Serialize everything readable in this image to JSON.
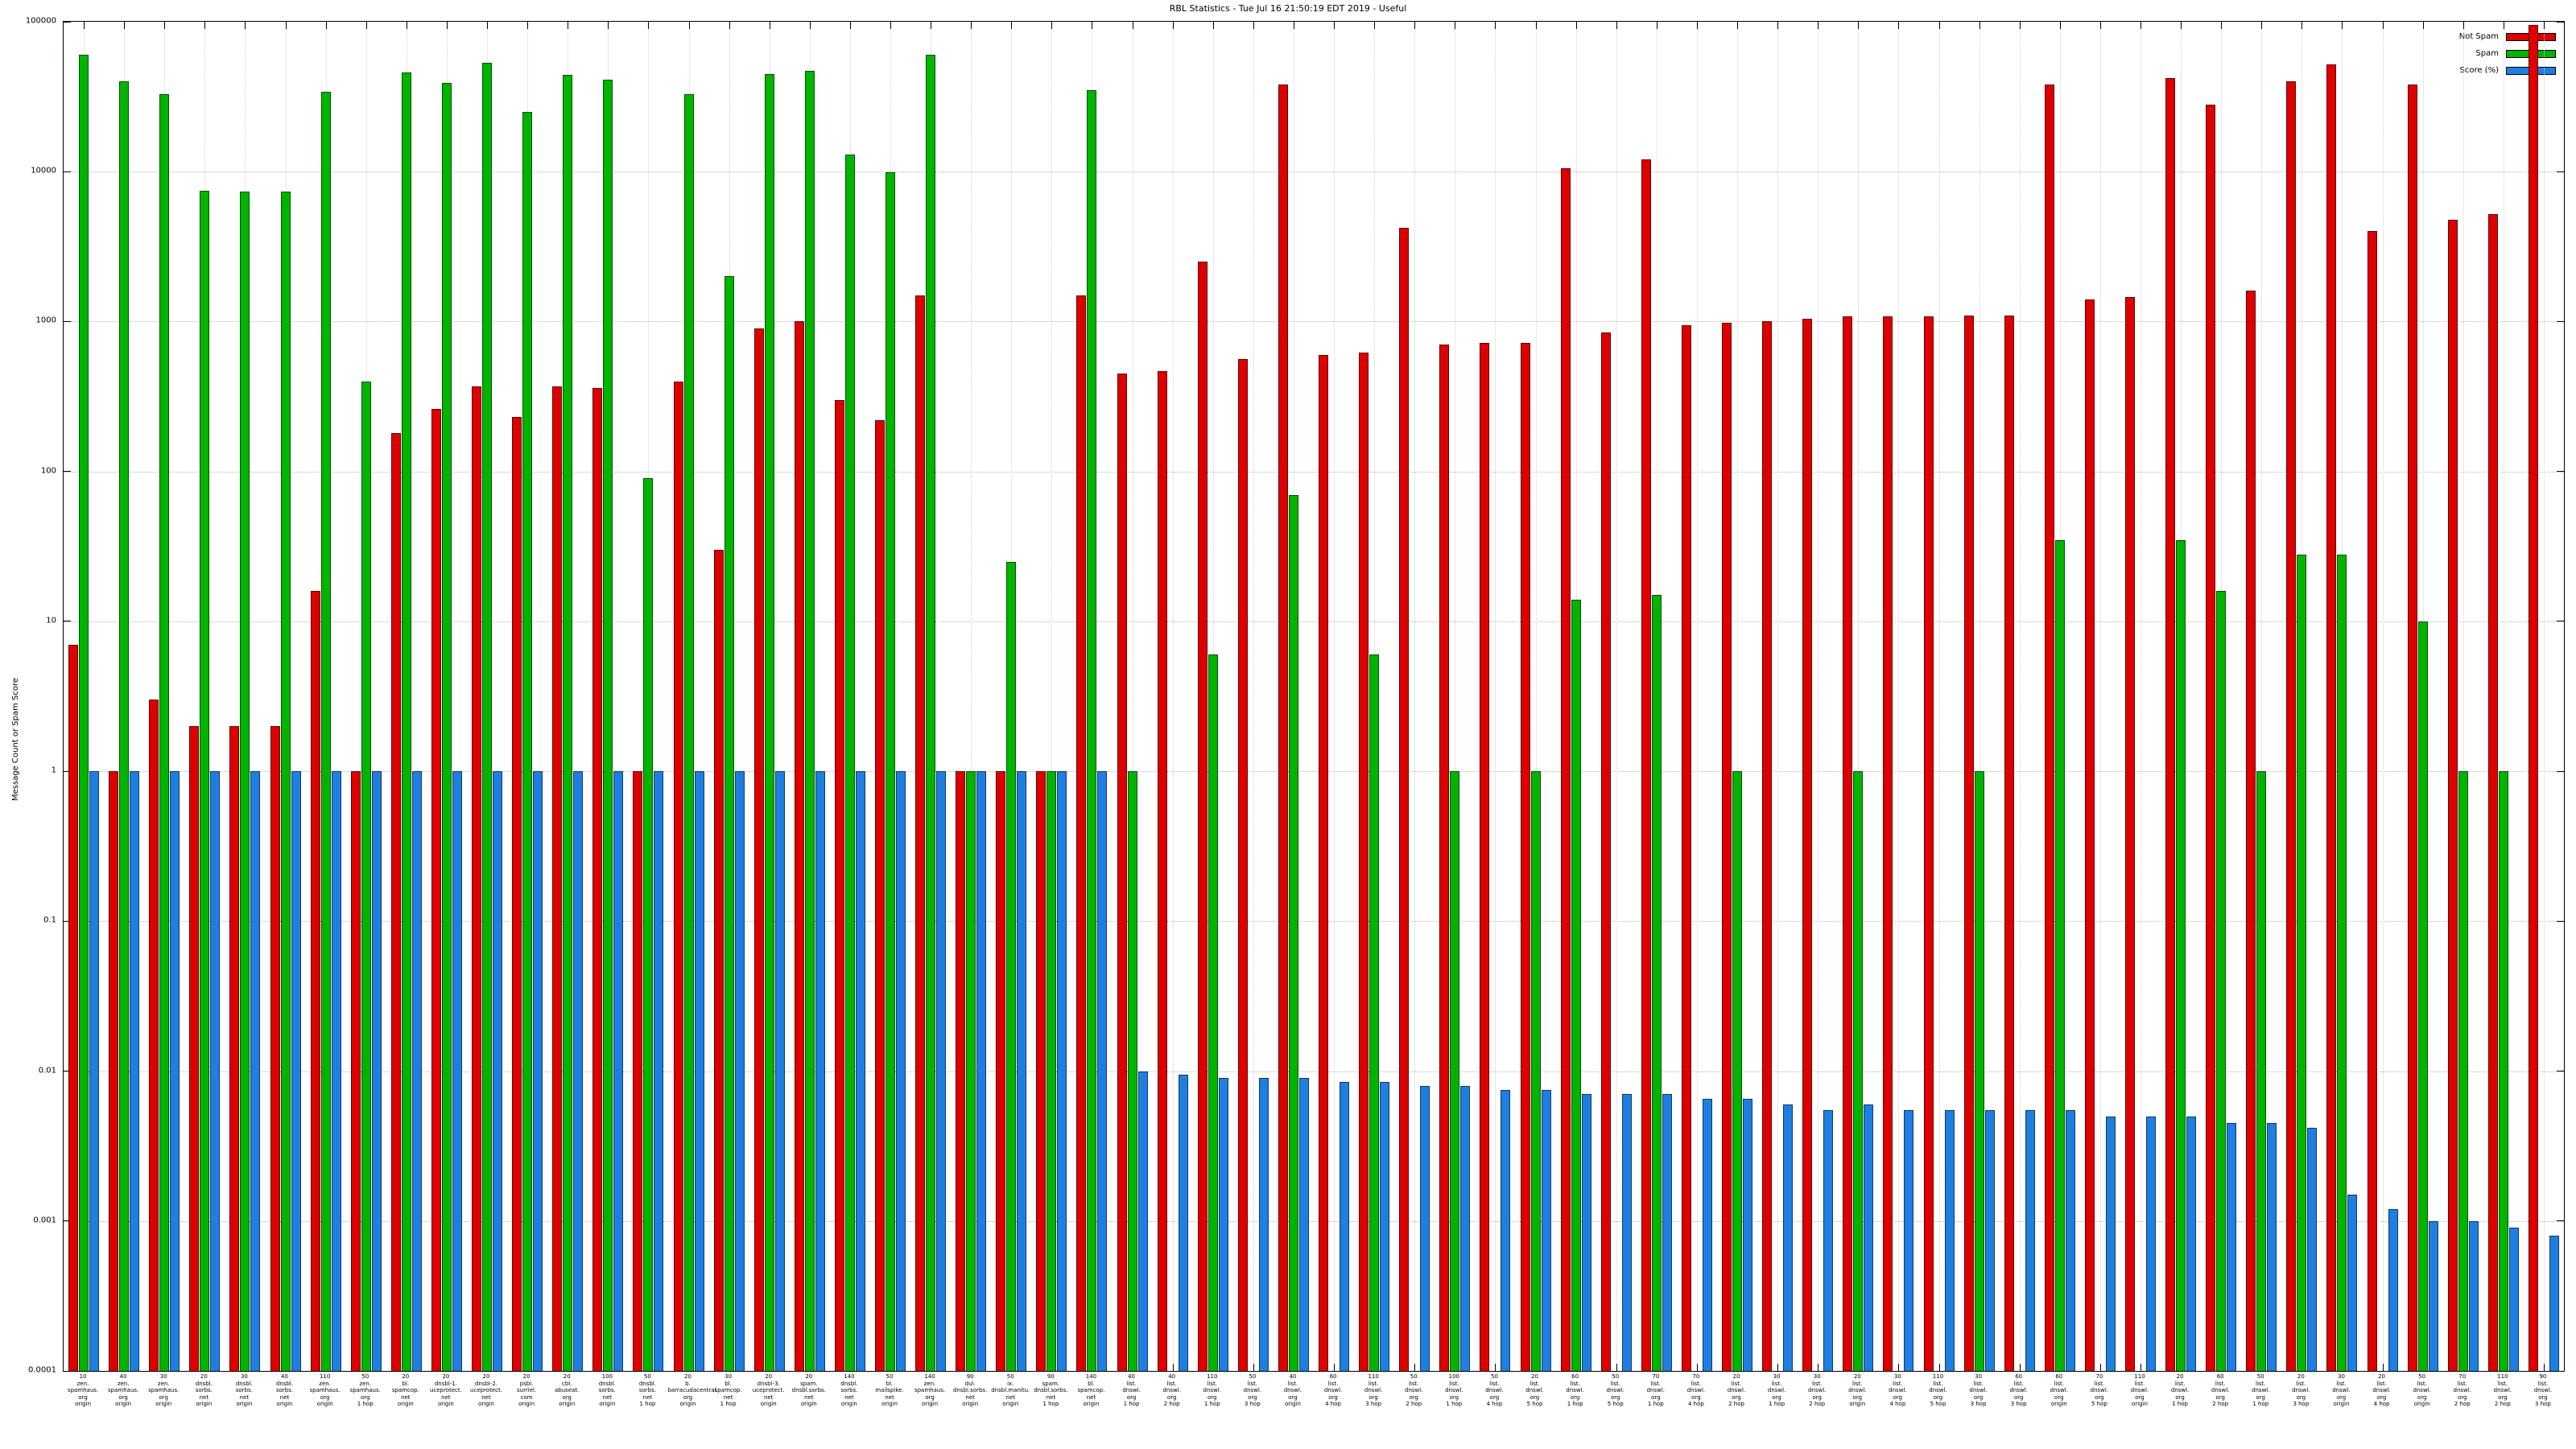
{
  "title": "RBL Statistics - Tue Jul 16 21:50:19 EDT 2019 - Useful",
  "axes": {
    "ylabel": "Message Count or Spam Score",
    "y_ticks": [
      "100000",
      "10000",
      "1000",
      "100",
      "10",
      "1",
      "0.1",
      "0.01",
      "0.001",
      "0.0001"
    ],
    "grid": "dotted"
  },
  "chart_data": {
    "type": "bar",
    "scale": "log-y",
    "ylim": [
      0.0001,
      100000
    ],
    "legend_position": "top-right",
    "series": [
      {
        "name": "Not Spam",
        "key": "not_spam",
        "color": "#dd0000"
      },
      {
        "name": "Spam",
        "key": "spam",
        "color": "#00b400"
      },
      {
        "name": "Score (%)",
        "key": "score",
        "color": "#1f7fe0"
      }
    ],
    "groups": [
      {
        "label": [
          "10",
          "zen.",
          "spamhaus.",
          "org",
          "origin"
        ],
        "not_spam": 7,
        "spam": 60000,
        "score": 1
      },
      {
        "label": [
          "40",
          "zen.",
          "spamhaus.",
          "org",
          "origin"
        ],
        "not_spam": 1,
        "spam": 40000,
        "score": 1
      },
      {
        "label": [
          "30",
          "zen.",
          "spamhaus.",
          "org",
          "origin"
        ],
        "not_spam": 3,
        "spam": 33000,
        "score": 1
      },
      {
        "label": [
          "20",
          "dnsbl.",
          "sorbs.",
          "net",
          "origin"
        ],
        "not_spam": 2,
        "spam": 7500,
        "score": 1
      },
      {
        "label": [
          "30",
          "dnsbl.",
          "sorbs.",
          "net",
          "origin"
        ],
        "not_spam": 2,
        "spam": 7400,
        "score": 1
      },
      {
        "label": [
          "40",
          "dnsbl.",
          "sorbs.",
          "net",
          "origin"
        ],
        "not_spam": 2,
        "spam": 7400,
        "score": 1
      },
      {
        "label": [
          "110",
          "zen.",
          "spamhaus.",
          "org",
          "origin"
        ],
        "not_spam": 16,
        "spam": 34000,
        "score": 1
      },
      {
        "label": [
          "50",
          "zen.",
          "spamhaus.",
          "org",
          "1 hop"
        ],
        "not_spam": 1,
        "spam": 400,
        "score": 1
      },
      {
        "label": [
          "20",
          "bl.",
          "spamcop.",
          "net",
          "origin"
        ],
        "not_spam": 180,
        "spam": 46000,
        "score": 1
      },
      {
        "label": [
          "20",
          "dnsbl-1.",
          "uceprotect.",
          "net",
          "origin"
        ],
        "not_spam": 260,
        "spam": 39000,
        "score": 1
      },
      {
        "label": [
          "20",
          "dnsbl-2.",
          "uceprotect.",
          "net",
          "origin"
        ],
        "not_spam": 370,
        "spam": 53000,
        "score": 1
      },
      {
        "label": [
          "20",
          "psbl.",
          "surriel.",
          "com",
          "origin"
        ],
        "not_spam": 230,
        "spam": 25000,
        "score": 1
      },
      {
        "label": [
          "20",
          "cbl.",
          "abuseat.",
          "org",
          "origin"
        ],
        "not_spam": 370,
        "spam": 44000,
        "score": 1
      },
      {
        "label": [
          "100",
          "dnsbl.",
          "sorbs.",
          "net",
          "origin"
        ],
        "not_spam": 360,
        "spam": 41000,
        "score": 1
      },
      {
        "label": [
          "50",
          "dnsbl.",
          "sorbs.",
          "net",
          "1 hop"
        ],
        "not_spam": 1,
        "spam": 90,
        "score": 1
      },
      {
        "label": [
          "20",
          "b.",
          "barracudacentral.",
          "org",
          "origin"
        ],
        "not_spam": 400,
        "spam": 33000,
        "score": 1
      },
      {
        "label": [
          "30",
          "bl.",
          "spamcop.",
          "net",
          "1 hop"
        ],
        "not_spam": 30,
        "spam": 2000,
        "score": 1
      },
      {
        "label": [
          "20",
          "dnsbl-3.",
          "uceprotect.",
          "net",
          "origin"
        ],
        "not_spam": 900,
        "spam": 45000,
        "score": 1
      },
      {
        "label": [
          "20",
          "spam.",
          "dnsbl.sorbs.",
          "net",
          "origin"
        ],
        "not_spam": 1000,
        "spam": 47000,
        "score": 1
      },
      {
        "label": [
          "140",
          "dnsbl.",
          "sorbs.",
          "net",
          "origin"
        ],
        "not_spam": 300,
        "spam": 13000,
        "score": 1
      },
      {
        "label": [
          "50",
          "bl.",
          "mailspike.",
          "net",
          "origin"
        ],
        "not_spam": 220,
        "spam": 9900,
        "score": 1
      },
      {
        "label": [
          "140",
          "zen.",
          "spamhaus.",
          "org",
          "origin"
        ],
        "not_spam": 1500,
        "spam": 60000,
        "score": 1
      },
      {
        "label": [
          "90",
          "dul.",
          "dnsbl.sorbs.",
          "net",
          "origin"
        ],
        "not_spam": 1,
        "spam": 1,
        "score": 1
      },
      {
        "label": [
          "50",
          "ix.",
          "dnsbl.manitu.",
          "net",
          "origin"
        ],
        "not_spam": 1,
        "spam": 25,
        "score": 1
      },
      {
        "label": [
          "90",
          "spam.",
          "dnsbl.sorbs.",
          "net",
          "1 hop"
        ],
        "not_spam": 1,
        "spam": 1,
        "score": 1
      },
      {
        "label": [
          "140",
          "bl.",
          "spamcop.",
          "net",
          "origin"
        ],
        "not_spam": 1500,
        "spam": 35000,
        "score": 1
      },
      {
        "label": [
          "40",
          "list.",
          "dnswl.",
          "org",
          "1 hop"
        ],
        "not_spam": 450,
        "spam": 1,
        "score": 0.01
      },
      {
        "label": [
          "40",
          "list.",
          "dnswl.",
          "org",
          "2 hop"
        ],
        "not_spam": 470,
        "spam": 0,
        "score": 0.0095
      },
      {
        "label": [
          "110",
          "list.",
          "dnswl.",
          "org",
          "1 hop"
        ],
        "not_spam": 2500,
        "spam": 6,
        "score": 0.009
      },
      {
        "label": [
          "50",
          "list.",
          "dnswl.",
          "org",
          "3 hop"
        ],
        "not_spam": 560,
        "spam": 0,
        "score": 0.009
      },
      {
        "label": [
          "40",
          "list.",
          "dnswl.",
          "org",
          "origin"
        ],
        "not_spam": 38000,
        "spam": 70,
        "score": 0.009
      },
      {
        "label": [
          "60",
          "list.",
          "dnswl.",
          "org",
          "4 hop"
        ],
        "not_spam": 600,
        "spam": 0,
        "score": 0.0085
      },
      {
        "label": [
          "110",
          "list.",
          "dnswl.",
          "org",
          "3 hop"
        ],
        "not_spam": 620,
        "spam": 6,
        "score": 0.0085
      },
      {
        "label": [
          "50",
          "list.",
          "dnswl.",
          "org",
          "2 hop"
        ],
        "not_spam": 4200,
        "spam": 0,
        "score": 0.008
      },
      {
        "label": [
          "100",
          "list.",
          "dnswl.",
          "org",
          "1 hop"
        ],
        "not_spam": 700,
        "spam": 1,
        "score": 0.008
      },
      {
        "label": [
          "50",
          "list.",
          "dnswl.",
          "org",
          "4 hop"
        ],
        "not_spam": 720,
        "spam": 0,
        "score": 0.0075
      },
      {
        "label": [
          "20",
          "list.",
          "dnswl.",
          "org",
          "5 hop"
        ],
        "not_spam": 720,
        "spam": 1,
        "score": 0.0075
      },
      {
        "label": [
          "60",
          "list.",
          "dnswl.",
          "org",
          "1 hop"
        ],
        "not_spam": 10500,
        "spam": 14,
        "score": 0.007
      },
      {
        "label": [
          "50",
          "list.",
          "dnswl.",
          "org",
          "5 hop"
        ],
        "not_spam": 850,
        "spam": 0,
        "score": 0.007
      },
      {
        "label": [
          "70",
          "list.",
          "dnswl.",
          "org",
          "1 hop"
        ],
        "not_spam": 12000,
        "spam": 15,
        "score": 0.007
      },
      {
        "label": [
          "70",
          "list.",
          "dnswl.",
          "org",
          "4 hop"
        ],
        "not_spam": 950,
        "spam": 0,
        "score": 0.0065
      },
      {
        "label": [
          "20",
          "list.",
          "dnswl.",
          "org",
          "2 hop"
        ],
        "not_spam": 980,
        "spam": 1,
        "score": 0.0065
      },
      {
        "label": [
          "30",
          "list.",
          "dnswl.",
          "org",
          "1 hop"
        ],
        "not_spam": 1000,
        "spam": 0,
        "score": 0.006
      },
      {
        "label": [
          "30",
          "list.",
          "dnswl.",
          "org",
          "2 hop"
        ],
        "not_spam": 1050,
        "spam": 0,
        "score": 0.0055
      },
      {
        "label": [
          "20",
          "list.",
          "dnswl.",
          "org",
          "origin"
        ],
        "not_spam": 1080,
        "spam": 1,
        "score": 0.006
      },
      {
        "label": [
          "30",
          "list.",
          "dnswl.",
          "org",
          "4 hop"
        ],
        "not_spam": 1080,
        "spam": 0,
        "score": 0.0055
      },
      {
        "label": [
          "110",
          "list.",
          "dnswl.",
          "org",
          "5 hop"
        ],
        "not_spam": 1080,
        "spam": 0,
        "score": 0.0055
      },
      {
        "label": [
          "30",
          "list.",
          "dnswl.",
          "org",
          "3 hop"
        ],
        "not_spam": 1100,
        "spam": 1,
        "score": 0.0055
      },
      {
        "label": [
          "60",
          "list.",
          "dnswl.",
          "org",
          "3 hop"
        ],
        "not_spam": 1100,
        "spam": 0,
        "score": 0.0055
      },
      {
        "label": [
          "60",
          "list.",
          "dnswl.",
          "org",
          "origin"
        ],
        "not_spam": 38000,
        "spam": 35,
        "score": 0.0055
      },
      {
        "label": [
          "70",
          "list.",
          "dnswl.",
          "org",
          "5 hop"
        ],
        "not_spam": 1400,
        "spam": 0,
        "score": 0.005
      },
      {
        "label": [
          "110",
          "list.",
          "dnswl.",
          "org",
          "origin"
        ],
        "not_spam": 1450,
        "spam": 0,
        "score": 0.005
      },
      {
        "label": [
          "20",
          "list.",
          "dnswl.",
          "org",
          "1 hop"
        ],
        "not_spam": 42000,
        "spam": 35,
        "score": 0.005
      },
      {
        "label": [
          "60",
          "list.",
          "dnswl.",
          "org",
          "2 hop"
        ],
        "not_spam": 28000,
        "spam": 16,
        "score": 0.0045
      },
      {
        "label": [
          "50",
          "list.",
          "dnswl.",
          "org",
          "1 hop"
        ],
        "not_spam": 1600,
        "spam": 1,
        "score": 0.0045
      },
      {
        "label": [
          "20",
          "list.",
          "dnswl.",
          "org",
          "3 hop"
        ],
        "not_spam": 40000,
        "spam": 28,
        "score": 0.0042
      },
      {
        "label": [
          "30",
          "list.",
          "dnswl.",
          "org",
          "origin"
        ],
        "not_spam": 52000,
        "spam": 28,
        "score": 0.0015
      },
      {
        "label": [
          "20",
          "list.",
          "dnswl.",
          "org",
          "4 hop"
        ],
        "not_spam": 4000,
        "spam": 0,
        "score": 0.0012
      },
      {
        "label": [
          "50",
          "list.",
          "dnswl.",
          "org",
          "origin"
        ],
        "not_spam": 38000,
        "spam": 10,
        "score": 0.001
      },
      {
        "label": [
          "70",
          "list.",
          "dnswl.",
          "org",
          "2 hop"
        ],
        "not_spam": 4800,
        "spam": 1,
        "score": 0.001
      },
      {
        "label": [
          "110",
          "list.",
          "dnswl.",
          "org",
          "2 hop"
        ],
        "not_spam": 5200,
        "spam": 1,
        "score": 0.0009
      },
      {
        "label": [
          "90",
          "list.",
          "dnswl.",
          "org",
          "3 hop"
        ],
        "not_spam": 95000,
        "spam": 0,
        "score": 0.0008
      }
    ]
  }
}
